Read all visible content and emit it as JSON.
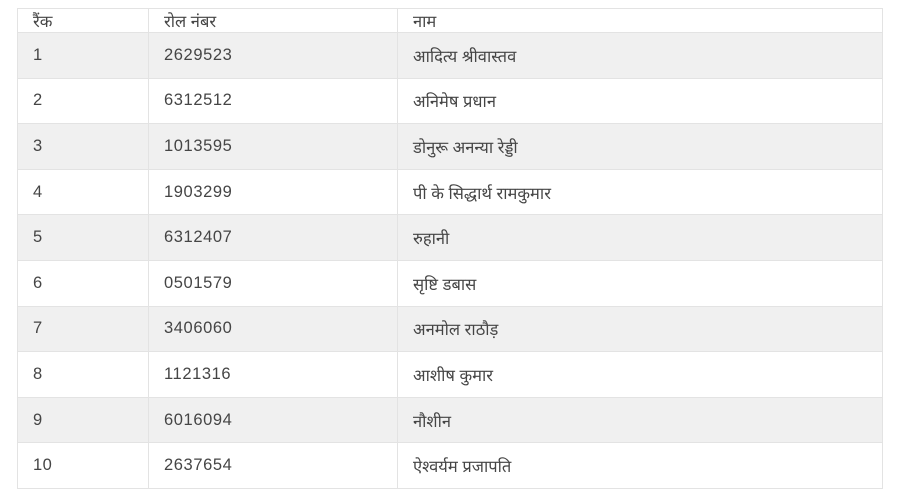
{
  "table": {
    "columns": [
      {
        "key": "rank",
        "label": "रैंक"
      },
      {
        "key": "roll",
        "label": "रोल नंबर"
      },
      {
        "key": "name",
        "label": "नाम"
      }
    ],
    "rows": [
      {
        "rank": "1",
        "roll": "2629523",
        "name": "आदित्य श्रीवास्तव"
      },
      {
        "rank": "2",
        "roll": "6312512",
        "name": "अनिमेष प्रधान"
      },
      {
        "rank": "3",
        "roll": "1013595",
        "name": "डोनुरू अनन्या रेड्डी"
      },
      {
        "rank": "4",
        "roll": "1903299",
        "name": "पी के सिद्धार्थ रामकुमार"
      },
      {
        "rank": "5",
        "roll": "6312407",
        "name": "रुहानी"
      },
      {
        "rank": "6",
        "roll": "0501579",
        "name": "सृष्टि डबास"
      },
      {
        "rank": "7",
        "roll": "3406060",
        "name": "अनमोल राठौड़"
      },
      {
        "rank": "8",
        "roll": "1121316",
        "name": "आशीष कुमार"
      },
      {
        "rank": "9",
        "roll": "6016094",
        "name": "नौशीन"
      },
      {
        "rank": "10",
        "roll": "2637654",
        "name": "ऐश्वर्यम प्रजापति"
      }
    ],
    "colors": {
      "stripe": "#f0f0f0",
      "border": "#e3e3e3",
      "text": "#454545",
      "background": "#ffffff"
    }
  }
}
